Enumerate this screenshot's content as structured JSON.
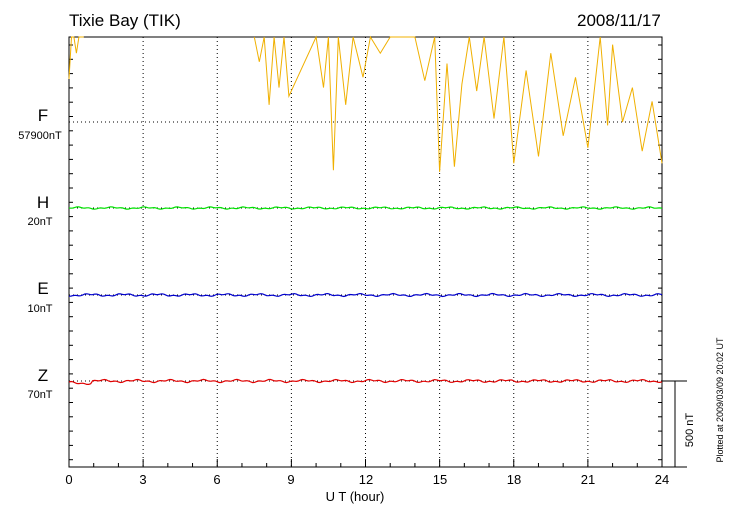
{
  "chart_data": {
    "type": "line",
    "title": "Tixie Bay (TIK)",
    "date": "2008/11/17",
    "xlabel": "U T (hour)",
    "xlim": [
      0,
      24
    ],
    "xticks": [
      "0",
      "3",
      "6",
      "9",
      "12",
      "15",
      "18",
      "21",
      "24"
    ],
    "grid": true,
    "scalebar": "500 nT",
    "note": "Plotted at 2009/03/09 20:02 UT",
    "channels": [
      {
        "name": "F",
        "scale": "57900nT",
        "color": "#f0b000"
      },
      {
        "name": "H",
        "scale": "20nT",
        "color": "#00e000"
      },
      {
        "name": "E",
        "scale": "10nT",
        "color": "#0000cc"
      },
      {
        "name": "Z",
        "scale": "70nT",
        "color": "#e00000"
      }
    ],
    "series": [
      {
        "name": "F",
        "x": [
          0.0,
          0.1,
          0.2,
          0.3,
          0.4,
          0.6,
          7.5,
          7.7,
          7.9,
          8.1,
          8.3,
          8.5,
          8.7,
          8.9,
          10.0,
          10.3,
          10.5,
          10.7,
          10.9,
          11.2,
          11.5,
          11.9,
          12.2,
          12.6,
          13.0,
          13.5,
          14.0,
          14.4,
          14.8,
          15.0,
          15.3,
          15.6,
          15.9,
          16.2,
          16.5,
          16.8,
          17.2,
          17.6,
          18.0,
          18.5,
          19.0,
          19.5,
          20.0,
          20.5,
          21.0,
          21.5,
          21.8,
          22.0,
          22.4,
          22.8,
          23.2,
          23.6,
          24.0
        ],
        "y": [
          750,
          1280,
          1380,
          900,
          1350,
          1000,
          1250,
          850,
          1300,
          600,
          1400,
          700,
          1180,
          650,
          1350,
          700,
          1250,
          220,
          1300,
          600,
          1380,
          760,
          1300,
          900,
          1300,
          1000,
          1200,
          740,
          1100,
          210,
          840,
          240,
          720,
          1010,
          680,
          1150,
          520,
          1100,
          260,
          800,
          300,
          900,
          420,
          760,
          350,
          1100,
          480,
          950,
          500,
          700,
          330,
          620,
          260
        ]
      }
    ]
  }
}
